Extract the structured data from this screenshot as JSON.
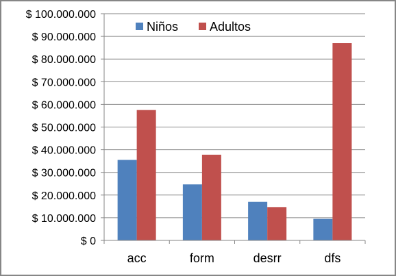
{
  "chart_data": {
    "type": "bar",
    "title": "",
    "xlabel": "",
    "ylabel": "",
    "categories": [
      "acc",
      "form",
      "desrr",
      "dfs"
    ],
    "series": [
      {
        "name": "Niños",
        "color": "#4F81BD",
        "values": [
          35500000,
          24700000,
          17000000,
          9500000
        ]
      },
      {
        "name": "Adultos",
        "color": "#C0504D",
        "values": [
          57500000,
          37800000,
          14700000,
          87000000
        ]
      }
    ],
    "ylim": [
      0,
      100000000
    ],
    "y_ticks": [
      {
        "value": 0,
        "label": "$ 0"
      },
      {
        "value": 10000000,
        "label": "$ 10.000.000"
      },
      {
        "value": 20000000,
        "label": "$ 20.000.000"
      },
      {
        "value": 30000000,
        "label": "$ 30.000.000"
      },
      {
        "value": 40000000,
        "label": "$ 40.000.000"
      },
      {
        "value": 50000000,
        "label": "$ 50.000.000"
      },
      {
        "value": 60000000,
        "label": "$ 60.000.000"
      },
      {
        "value": 70000000,
        "label": "$ 70.000.000"
      },
      {
        "value": 80000000,
        "label": "$ 80.000.000"
      },
      {
        "value": 90000000,
        "label": "$ 90.000.000"
      },
      {
        "value": 100000000,
        "label": "$ 100.000.000"
      }
    ],
    "grid": true,
    "legend_position": "top"
  }
}
